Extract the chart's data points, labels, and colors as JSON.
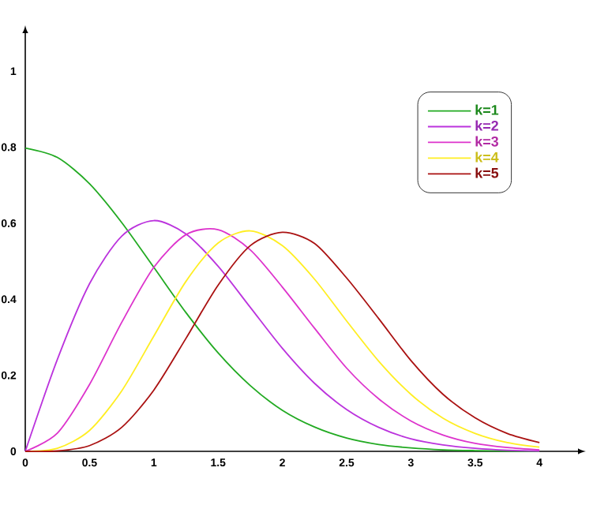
{
  "chart_data": {
    "type": "line",
    "x": [
      0,
      0.25,
      0.5,
      0.75,
      1,
      1.25,
      1.5,
      1.75,
      2,
      2.25,
      2.5,
      2.75,
      3,
      3.25,
      3.5,
      3.75,
      4
    ],
    "series": [
      {
        "name": "k=1",
        "color": "#22aa22",
        "values": [
          0.798,
          0.773,
          0.704,
          0.602,
          0.484,
          0.365,
          0.259,
          0.173,
          0.108,
          0.064,
          0.035,
          0.018,
          0.009,
          0.004,
          0.002,
          0.001,
          0.0
        ]
      },
      {
        "name": "k=2",
        "color": "#bb33dd",
        "values": [
          0,
          0.242,
          0.441,
          0.566,
          0.607,
          0.572,
          0.487,
          0.379,
          0.271,
          0.179,
          0.11,
          0.063,
          0.033,
          0.017,
          0.008,
          0.003,
          0.001
        ]
      },
      {
        "name": "k=3",
        "color": "#dd33cc",
        "values": [
          0,
          0.048,
          0.176,
          0.339,
          0.484,
          0.57,
          0.583,
          0.53,
          0.432,
          0.324,
          0.219,
          0.138,
          0.08,
          0.043,
          0.021,
          0.01,
          0.004
        ]
      },
      {
        "name": "k=4",
        "color": "#ffee22",
        "values": [
          0,
          0.008,
          0.055,
          0.159,
          0.303,
          0.447,
          0.548,
          0.58,
          0.541,
          0.453,
          0.343,
          0.237,
          0.15,
          0.087,
          0.047,
          0.023,
          0.011
        ]
      },
      {
        "name": "k=5",
        "color": "#aa1111",
        "values": [
          0,
          0.001,
          0.015,
          0.063,
          0.161,
          0.297,
          0.437,
          0.541,
          0.576,
          0.547,
          0.456,
          0.349,
          0.239,
          0.15,
          0.088,
          0.047,
          0.023
        ]
      }
    ],
    "xlim": [
      0,
      4.3
    ],
    "ylim": [
      0,
      1.1
    ],
    "xticks": [
      0,
      0.5,
      1,
      1.5,
      2,
      2.5,
      3,
      3.5,
      4
    ],
    "yticks": [
      0,
      0.2,
      0.4,
      0.6,
      0.8,
      1
    ],
    "grid": false,
    "legend": "top right",
    "marker": "none",
    "line_style": "solid"
  }
}
